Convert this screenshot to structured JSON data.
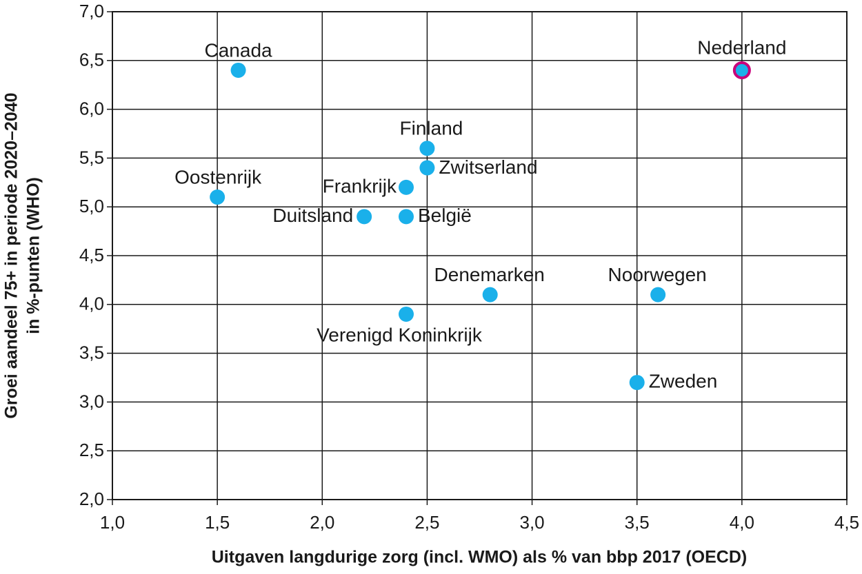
{
  "chart_data": {
    "type": "scatter",
    "xlabel": "Uitgaven langdurige zorg (incl. WMO) als % van bbp 2017 (OECD)",
    "ylabel": [
      "Groei aandeel 75+ in periode 2020–2040",
      "in %-punten (WHO)"
    ],
    "labels": [
      "Canada",
      "Nederland",
      "Finland",
      "Zwitserland",
      "Frankrijk",
      "Oostenrijk",
      "Duitsland",
      "België",
      "Denemarken",
      "Noorwegen",
      "Verenigd Koninkrijk",
      "Zweden"
    ],
    "x": [
      1.6,
      4.0,
      2.5,
      2.5,
      2.4,
      1.5,
      2.2,
      2.4,
      2.8,
      3.6,
      2.4,
      3.5
    ],
    "values": [
      6.4,
      6.4,
      5.6,
      5.4,
      5.2,
      5.1,
      4.9,
      4.9,
      4.1,
      4.1,
      3.9,
      3.2
    ],
    "color": "#1ab0ea",
    "edgecolors": [
      "none",
      "#c8007a",
      "none",
      "none",
      "none",
      "none",
      "none",
      "none",
      "none",
      "none",
      "none",
      "none"
    ],
    "xlim": [
      1.0,
      4.5
    ],
    "ylim": [
      2.0,
      7.0
    ],
    "xticks": [
      {
        "value": 1.0,
        "label": "1,0"
      },
      {
        "value": 1.5,
        "label": "1,5"
      },
      {
        "value": 2.0,
        "label": "2,0"
      },
      {
        "value": 2.5,
        "label": "2,5"
      },
      {
        "value": 3.0,
        "label": "3,0"
      },
      {
        "value": 3.5,
        "label": "3,5"
      },
      {
        "value": 4.0,
        "label": "4,0"
      },
      {
        "value": 4.5,
        "label": "4,5"
      }
    ],
    "yticks": [
      {
        "value": 2.0,
        "label": "2,0"
      },
      {
        "value": 2.5,
        "label": "2,5"
      },
      {
        "value": 3.0,
        "label": "3,0"
      },
      {
        "value": 3.5,
        "label": "3,5"
      },
      {
        "value": 4.0,
        "label": "4,0"
      },
      {
        "value": 4.5,
        "label": "4,5"
      },
      {
        "value": 5.0,
        "label": "5,0"
      },
      {
        "value": 5.5,
        "label": "5,5"
      },
      {
        "value": 6.0,
        "label": "6,0"
      },
      {
        "value": 6.5,
        "label": "6,5"
      },
      {
        "value": 7.0,
        "label": "7,0"
      }
    ],
    "grid": true
  }
}
